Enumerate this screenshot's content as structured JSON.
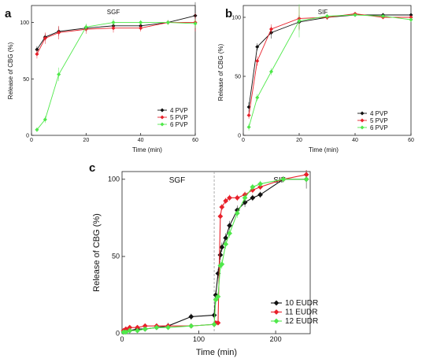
{
  "colors": {
    "4": "#111111",
    "5": "#e8202a",
    "6": "#4fe84a"
  },
  "chart_data": [
    {
      "panel": "a",
      "type": "line",
      "title": "SGF",
      "xlabel": "Time (min)",
      "ylabel": "Release of CBG (%)",
      "xlim": [
        0,
        60
      ],
      "ylim": [
        0,
        115
      ],
      "xticks": [
        0,
        20,
        40,
        60
      ],
      "yticks": [
        0,
        50,
        100
      ],
      "legend_position": "bottom-right",
      "series": [
        {
          "name": "4 PVP",
          "color_key": "4",
          "x": [
            2,
            5,
            10,
            20,
            30,
            40,
            50,
            60
          ],
          "y": [
            76,
            87,
            92,
            95,
            97,
            97,
            100,
            106
          ],
          "err": [
            3,
            3,
            4,
            3,
            3,
            3,
            2,
            12
          ]
        },
        {
          "name": "5 PVP",
          "color_key": "5",
          "x": [
            2,
            5,
            10,
            20,
            30,
            40,
            50,
            60
          ],
          "y": [
            72,
            86,
            91,
            94,
            95,
            95,
            100,
            100
          ],
          "err": [
            4,
            5,
            6,
            4,
            4,
            3,
            2,
            8
          ]
        },
        {
          "name": "6 PVP",
          "color_key": "6",
          "x": [
            2,
            5,
            10,
            20,
            30,
            40,
            50,
            60
          ],
          "y": [
            5,
            14,
            54,
            96,
            100,
            100,
            100,
            99
          ],
          "err": [
            2,
            3,
            6,
            3,
            3,
            2,
            2,
            4
          ]
        }
      ]
    },
    {
      "panel": "b",
      "type": "line",
      "title": "SIF",
      "xlabel": "Time (min)",
      "ylabel": "Release of CBG (%)",
      "xlim": [
        0,
        60
      ],
      "ylim": [
        0,
        110
      ],
      "xticks": [
        0,
        20,
        40,
        60
      ],
      "yticks": [
        0,
        50,
        100
      ],
      "legend_position": "bottom-right",
      "series": [
        {
          "name": "4 PVP",
          "color_key": "4",
          "x": [
            2,
            5,
            10,
            20,
            30,
            40,
            50,
            60
          ],
          "y": [
            24,
            75,
            87,
            96,
            100,
            102,
            102,
            102
          ],
          "err": [
            4,
            3,
            5,
            6,
            2,
            1,
            1,
            1
          ]
        },
        {
          "name": "5 PVP",
          "color_key": "5",
          "x": [
            2,
            5,
            10,
            20,
            30,
            40,
            50,
            60
          ],
          "y": [
            17,
            63,
            90,
            99,
            100,
            103,
            100,
            100
          ],
          "err": [
            3,
            4,
            4,
            10,
            2,
            1,
            1,
            1
          ]
        },
        {
          "name": "6 PVP",
          "color_key": "6",
          "x": [
            2,
            5,
            10,
            20,
            30,
            40,
            50,
            60
          ],
          "y": [
            7,
            32,
            54,
            97,
            101,
            102,
            101,
            98
          ],
          "err": [
            3,
            3,
            3,
            14,
            2,
            1,
            1,
            2
          ]
        }
      ]
    },
    {
      "panel": "c",
      "type": "line",
      "regions": [
        "SGF",
        "SIF"
      ],
      "region_divider_x": 120,
      "xlabel": "Time (min)",
      "ylabel": "Release of CBG (%)",
      "xlim": [
        0,
        245
      ],
      "ylim": [
        0,
        105
      ],
      "xticks": [
        0,
        100,
        200
      ],
      "yticks": [
        0,
        50,
        100
      ],
      "legend_position": "bottom-right",
      "series": [
        {
          "name": "10 EUDR",
          "color_key": "4",
          "x": [
            2,
            5,
            10,
            20,
            30,
            45,
            60,
            90,
            120,
            122,
            125,
            128,
            130,
            135,
            140,
            150,
            160,
            170,
            180,
            210,
            240
          ],
          "y": [
            1,
            2,
            2,
            3,
            3,
            4,
            5,
            11,
            12,
            25,
            39,
            51,
            56,
            62,
            70,
            80,
            85,
            88,
            90,
            100,
            100
          ],
          "err": [
            1,
            1,
            1,
            1,
            1,
            1,
            2,
            2,
            2,
            3,
            3,
            3,
            3,
            3,
            3,
            3,
            3,
            2,
            2,
            2,
            6
          ]
        },
        {
          "name": "11 EUDR",
          "color_key": "5",
          "x": [
            2,
            5,
            10,
            20,
            30,
            45,
            60,
            90,
            120,
            122,
            125,
            128,
            130,
            135,
            140,
            150,
            160,
            170,
            180,
            210,
            240
          ],
          "y": [
            2,
            3,
            4,
            4,
            5,
            5,
            5,
            5,
            6,
            7,
            7,
            76,
            82,
            86,
            88,
            88,
            90,
            93,
            95,
            100,
            103
          ],
          "err": [
            1,
            1,
            1,
            1,
            1,
            1,
            1,
            1,
            1,
            1,
            1,
            2,
            2,
            2,
            2,
            2,
            2,
            2,
            2,
            1,
            3
          ]
        },
        {
          "name": "12 EUDR",
          "color_key": "6",
          "x": [
            2,
            5,
            10,
            20,
            30,
            45,
            60,
            90,
            120,
            122,
            125,
            128,
            130,
            135,
            140,
            150,
            160,
            170,
            180,
            210,
            240
          ],
          "y": [
            1,
            1,
            2,
            2,
            3,
            4,
            4,
            5,
            6,
            22,
            24,
            44,
            45,
            58,
            65,
            78,
            88,
            95,
            97,
            100,
            100
          ],
          "err": [
            1,
            1,
            1,
            1,
            1,
            1,
            1,
            1,
            1,
            3,
            3,
            3,
            3,
            3,
            3,
            3,
            3,
            2,
            2,
            1,
            2
          ]
        }
      ]
    }
  ]
}
